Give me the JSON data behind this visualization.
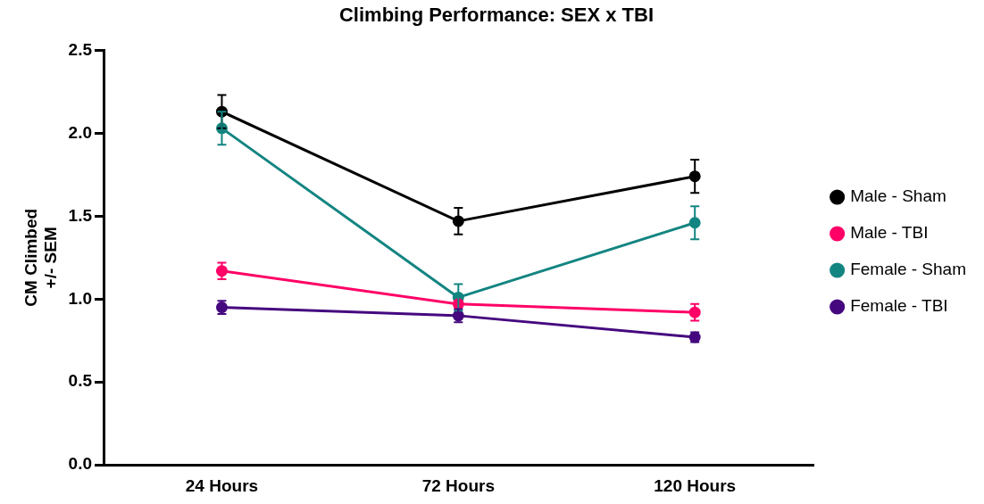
{
  "chart_data": {
    "type": "line",
    "title": "Climbing Performance: SEX x TBI",
    "ylabel": "CM Climbed\n+/- SEM",
    "categories": [
      "24 Hours",
      "72 Hours",
      "120 Hours"
    ],
    "series": [
      {
        "name": "Male - Sham",
        "color": "#000000",
        "values": [
          2.13,
          1.47,
          1.74
        ],
        "errors": [
          0.1,
          0.08,
          0.1
        ]
      },
      {
        "name": "Male - TBI",
        "color": "#ff0066",
        "values": [
          1.17,
          0.97,
          0.92
        ],
        "errors": [
          0.05,
          0.02,
          0.05
        ]
      },
      {
        "name": "Female - Sham",
        "color": "#138581",
        "values": [
          2.03,
          1.01,
          1.46
        ],
        "errors": [
          0.1,
          0.08,
          0.1
        ]
      },
      {
        "name": "Female - TBI",
        "color": "#45087f",
        "values": [
          0.95,
          0.9,
          0.77
        ],
        "errors": [
          0.04,
          0.04,
          0.03
        ]
      }
    ],
    "ylim": [
      0,
      2.5
    ],
    "yticks": [
      {
        "value": 0,
        "label": "0.0"
      },
      0.5,
      {
        "value": 1,
        "label": "1.0"
      },
      1.5,
      {
        "value": 2,
        "label": "2.0"
      },
      2.5
    ],
    "grid": false,
    "legend": "right",
    "marker": "circle",
    "line_style": "solid"
  }
}
